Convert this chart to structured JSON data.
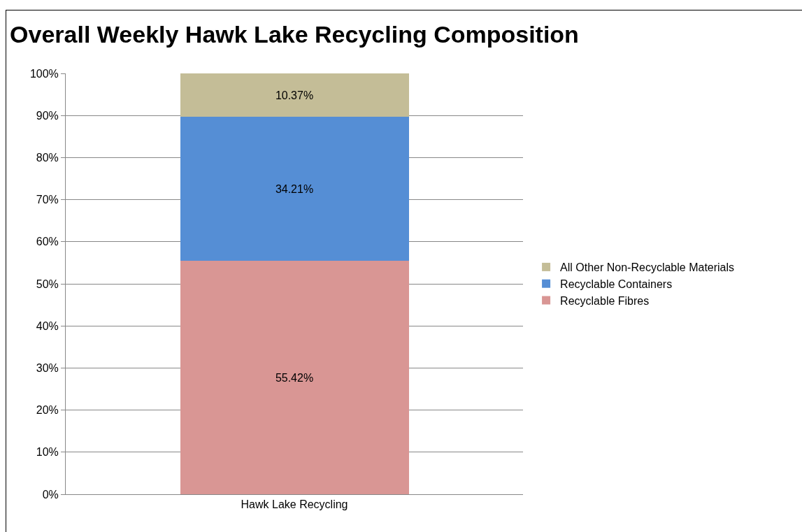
{
  "chart_data": {
    "type": "bar",
    "title": "Overall Weekly Hawk Lake Recycling Composition",
    "categories": [
      "Hawk Lake Recycling"
    ],
    "stacked": true,
    "series": [
      {
        "name": "Recyclable Fibres",
        "color": "#d99694",
        "values": [
          55.42
        ],
        "value_labels": [
          "55.42%"
        ]
      },
      {
        "name": "Recyclable Containers",
        "color": "#558ed5",
        "values": [
          34.21
        ],
        "value_labels": [
          "34.21%"
        ]
      },
      {
        "name": "All Other Non-Recyclable Materials",
        "color": "#c4bd97",
        "values": [
          10.37
        ],
        "value_labels": [
          "10.37%"
        ]
      }
    ],
    "ylim": [
      0,
      100
    ],
    "yticks": [
      {
        "value": 0,
        "label": "0%"
      },
      {
        "value": 10,
        "label": "10%"
      },
      {
        "value": 20,
        "label": "20%"
      },
      {
        "value": 30,
        "label": "30%"
      },
      {
        "value": 40,
        "label": "40%"
      },
      {
        "value": 50,
        "label": "50%"
      },
      {
        "value": 60,
        "label": "60%"
      },
      {
        "value": 70,
        "label": "70%"
      },
      {
        "value": 80,
        "label": "80%"
      },
      {
        "value": 90,
        "label": "90%"
      },
      {
        "value": 100,
        "label": "100%"
      }
    ],
    "grid": "y",
    "legend": "right"
  }
}
